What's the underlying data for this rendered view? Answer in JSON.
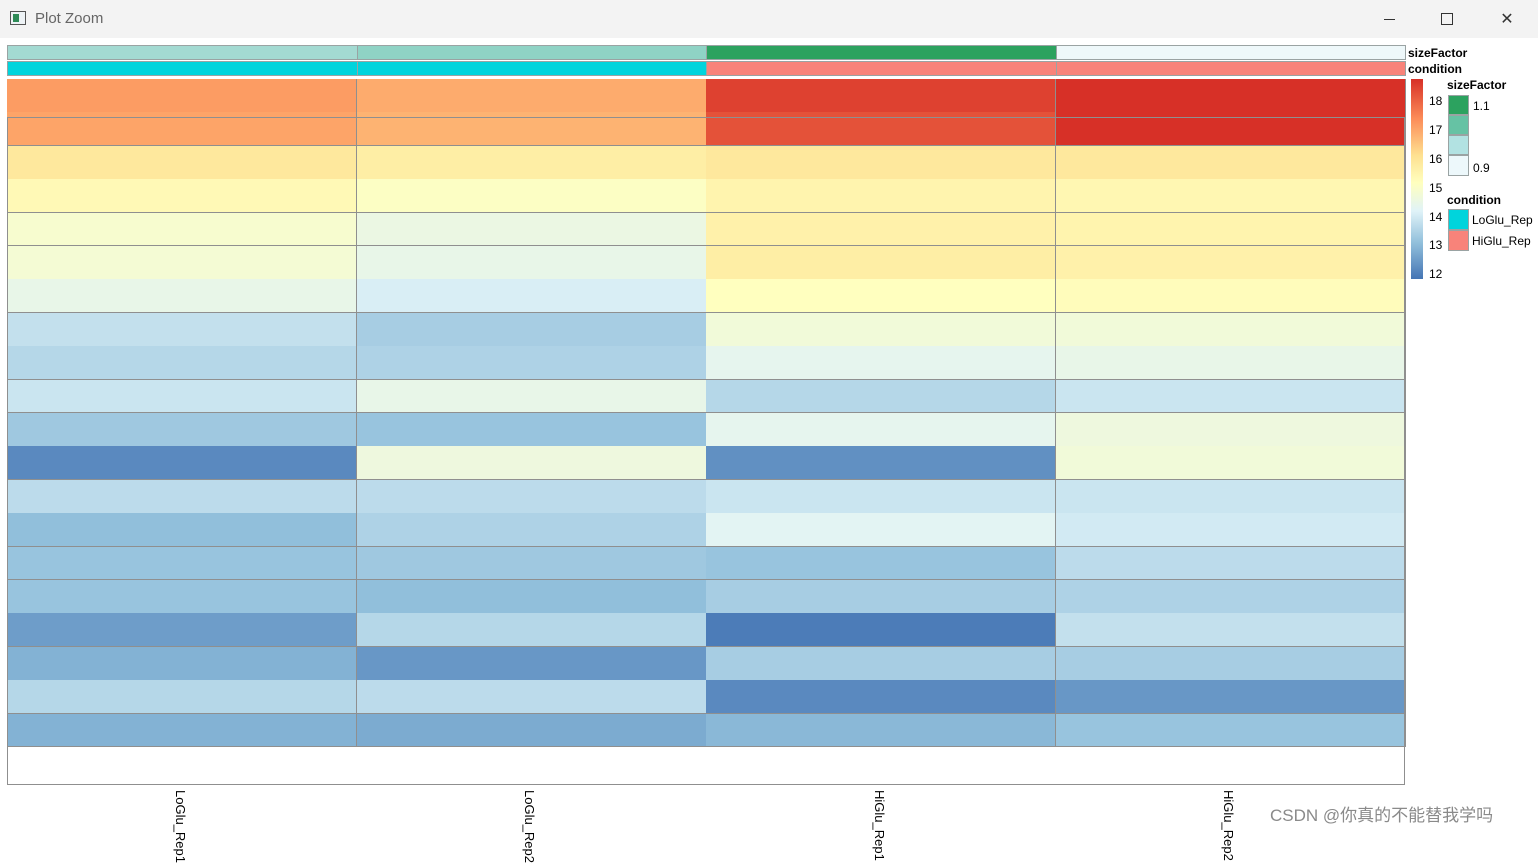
{
  "window": {
    "title": "Plot Zoom",
    "controls": {
      "minimize": "minimize",
      "maximize": "maximize",
      "close": "close"
    }
  },
  "annotation_rows": [
    {
      "label": "sizeFactor",
      "colors": [
        "#a3dad2",
        "#8fd3c5",
        "#2ca25f",
        "#eef8fa"
      ]
    },
    {
      "label": "condition",
      "colors": [
        "#00d4dc",
        "#00d4dc",
        "#f8837a",
        "#f8837a"
      ]
    }
  ],
  "chart_data": {
    "type": "heatmap",
    "columns": [
      "LoGlu_Rep1",
      "LoGlu_Rep2",
      "HiGlu_Rep1",
      "HiGlu_Rep2"
    ],
    "values": [
      [
        17.3,
        17.1,
        18.4,
        18.6
      ],
      [
        17.2,
        17.0,
        18.2,
        18.6
      ],
      [
        16.1,
        15.9,
        16.1,
        16.1
      ],
      [
        15.5,
        15.2,
        15.7,
        15.6
      ],
      [
        15.0,
        14.6,
        15.8,
        15.7
      ],
      [
        14.9,
        14.5,
        15.9,
        15.8
      ],
      [
        14.5,
        14.1,
        15.3,
        15.4
      ],
      [
        13.8,
        13.4,
        14.8,
        14.8
      ],
      [
        13.6,
        13.5,
        14.4,
        14.5
      ],
      [
        13.9,
        14.5,
        13.6,
        13.9
      ],
      [
        13.3,
        13.2,
        14.4,
        14.7
      ],
      [
        12.3,
        14.7,
        12.4,
        14.8
      ],
      [
        13.7,
        13.7,
        13.9,
        13.9
      ],
      [
        13.1,
        13.5,
        14.3,
        14.0
      ],
      [
        13.2,
        13.3,
        13.2,
        13.7
      ],
      [
        13.2,
        13.1,
        13.4,
        13.5
      ],
      [
        12.6,
        13.6,
        12.1,
        13.8
      ],
      [
        12.9,
        12.5,
        13.4,
        13.4
      ],
      [
        13.6,
        13.7,
        12.3,
        12.5
      ],
      [
        12.9,
        12.8,
        13.0,
        13.2
      ]
    ],
    "colorscale": [
      "#4575b4",
      "#91bfdb",
      "#e0f3f8",
      "#ffffbf",
      "#fee090",
      "#fc8d59",
      "#d73027"
    ],
    "range": [
      12,
      18.6
    ],
    "legend": {
      "ticks": [
        "18",
        "17",
        "16",
        "15",
        "14",
        "13",
        "12"
      ],
      "sizeFactor": {
        "title": "sizeFactor",
        "high": "1.1",
        "low": "0.9",
        "colors": [
          "#2ca25f",
          "#66c2a4",
          "#b2e2e2",
          "#edf8fb"
        ]
      },
      "condition": {
        "title": "condition",
        "items": [
          {
            "label": "LoGlu_Rep",
            "color": "#00d4dc"
          },
          {
            "label": "HiGlu_Rep",
            "color": "#f8837a"
          }
        ]
      }
    }
  },
  "watermark": "CSDN @你真的不能替我学吗"
}
